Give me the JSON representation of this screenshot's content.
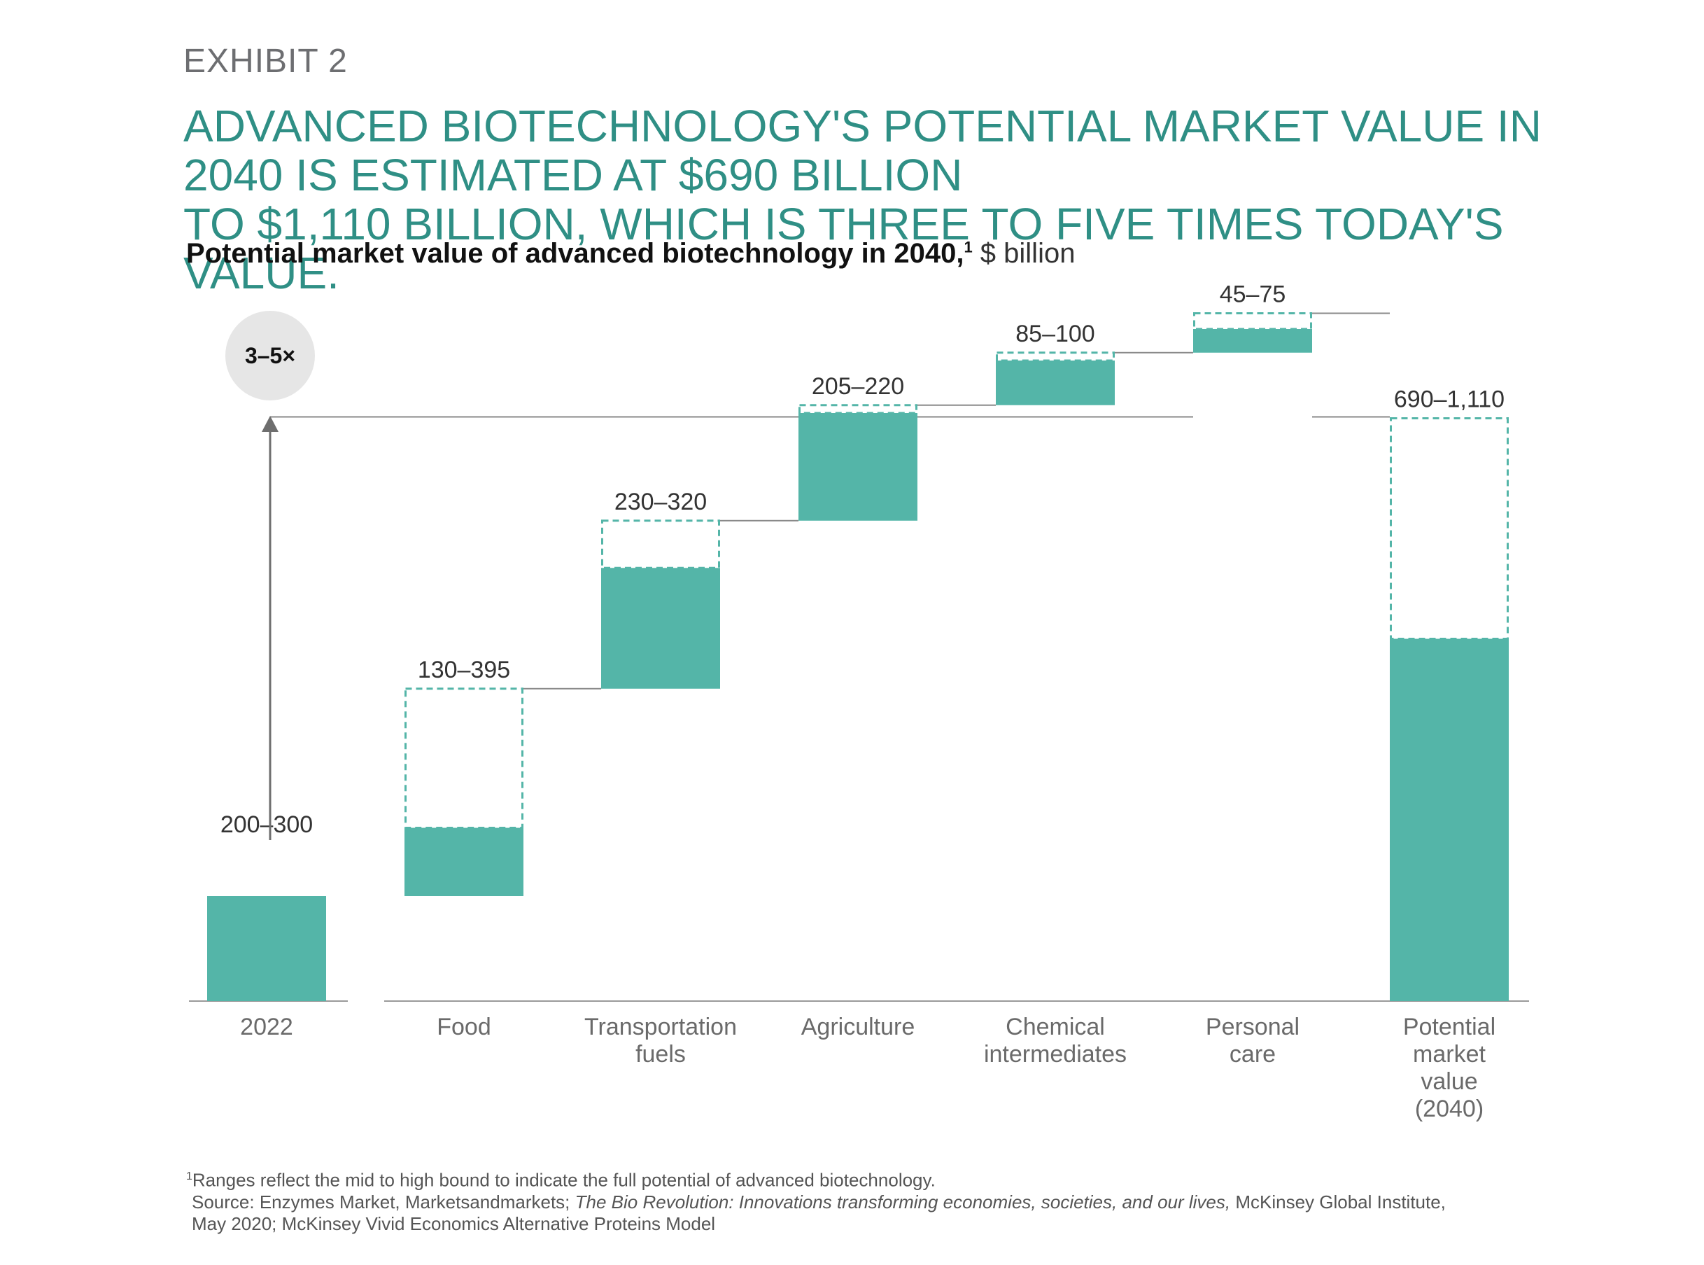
{
  "header": {
    "exhibit": "EXHIBIT 2",
    "headline_line1": "ADVANCED BIOTECHNOLOGY'S POTENTIAL MARKET VALUE IN 2040 IS ESTIMATED AT $690 BILLION",
    "headline_line2": "TO $1,110 BILLION, WHICH IS THREE TO FIVE TIMES TODAY'S VALUE.",
    "subtitle_bold": "Potential market value of advanced biotechnology in 2040,",
    "subtitle_sup": "1",
    "subtitle_unit": " $ billion"
  },
  "chart_data": {
    "type": "bar",
    "subtype": "waterfall",
    "title": "Potential market value of advanced biotechnology in 2040,",
    "unit": "$ billion",
    "multiplier_badge": "3–5×",
    "colors": {
      "bar": "#54b5a8",
      "dashed_outline": "#54b5a8",
      "connector": "#8a8a8a",
      "badge": "#e6e6e6",
      "arrow": "#6e6e6e"
    },
    "categories": [
      {
        "label_lines": [
          "2022"
        ],
        "range_label": "200–300",
        "low": 200,
        "high": 300,
        "kind": "start"
      },
      {
        "label_lines": [
          "Food"
        ],
        "range_label": "130–395",
        "low": 130,
        "high": 395,
        "kind": "increment"
      },
      {
        "label_lines": [
          "Transportation",
          "fuels"
        ],
        "range_label": "230–320",
        "low": 230,
        "high": 320,
        "kind": "increment"
      },
      {
        "label_lines": [
          "Agriculture"
        ],
        "range_label": "205–220",
        "low": 205,
        "high": 220,
        "kind": "increment"
      },
      {
        "label_lines": [
          "Chemical",
          "intermediates"
        ],
        "range_label": "85–100",
        "low": 85,
        "high": 100,
        "kind": "increment"
      },
      {
        "label_lines": [
          "Personal",
          "care"
        ],
        "range_label": "45–75",
        "low": 45,
        "high": 75,
        "kind": "increment"
      },
      {
        "label_lines": [
          "Potential",
          "market",
          "value",
          "(2040)"
        ],
        "range_label": "690–1,110",
        "low": 690,
        "high": 1110,
        "kind": "total"
      }
    ]
  },
  "footnotes": {
    "note_sup": "1",
    "note": "Ranges reflect the mid to high bound to indicate the full potential of advanced biotechnology.",
    "source_prefix": "Source: Enzymes Market, Marketsandmarkets; ",
    "source_italic": "The Bio Revolution: Innovations transforming economies, societies, and our lives,",
    "source_suffix": " McKinsey Global Institute,",
    "source_line2": "May 2020; McKinsey Vivid Economics Alternative Proteins Model"
  }
}
